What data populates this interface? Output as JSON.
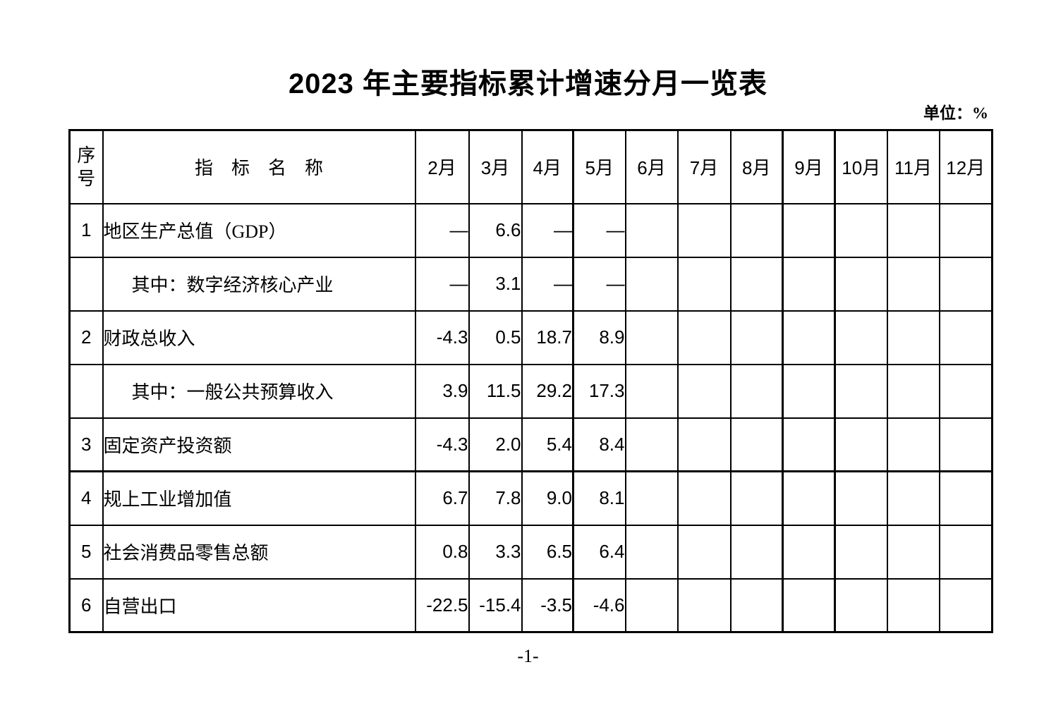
{
  "page": {
    "title": "2023 年主要指标累计增速分月一览表",
    "unit_label": "单位：%",
    "page_number": "-1-"
  },
  "table": {
    "header": {
      "serial": "序号",
      "indicator": "指　标　名　称",
      "months": [
        "2月",
        "3月",
        "4月",
        "5月",
        "6月",
        "7月",
        "8月",
        "9月",
        "10月",
        "11月",
        "12月"
      ]
    },
    "rows": [
      {
        "serial": "1",
        "indicator": "地区生产总值（GDP）",
        "indent": false,
        "values": [
          "—",
          "6.6",
          "—",
          "—",
          "",
          "",
          "",
          "",
          "",
          "",
          ""
        ]
      },
      {
        "serial": "",
        "indicator": "其中：数字经济核心产业",
        "indent": true,
        "values": [
          "—",
          "3.1",
          "—",
          "—",
          "",
          "",
          "",
          "",
          "",
          "",
          ""
        ]
      },
      {
        "serial": "2",
        "indicator": "财政总收入",
        "indent": false,
        "values": [
          "-4.3",
          "0.5",
          "18.7",
          "8.9",
          "",
          "",
          "",
          "",
          "",
          "",
          ""
        ]
      },
      {
        "serial": "",
        "indicator": "其中：一般公共预算收入",
        "indent": true,
        "values": [
          "3.9",
          "11.5",
          "29.2",
          "17.3",
          "",
          "",
          "",
          "",
          "",
          "",
          ""
        ]
      },
      {
        "serial": "3",
        "indicator": "固定资产投资额",
        "indent": false,
        "values": [
          "-4.3",
          "2.0",
          "5.4",
          "8.4",
          "",
          "",
          "",
          "",
          "",
          "",
          ""
        ]
      },
      {
        "serial": "4",
        "indicator": "规上工业增加值",
        "indent": false,
        "values": [
          "6.7",
          "7.8",
          "9.0",
          "8.1",
          "",
          "",
          "",
          "",
          "",
          "",
          ""
        ]
      },
      {
        "serial": "5",
        "indicator": "社会消费品零售总额",
        "indent": false,
        "values": [
          "0.8",
          "3.3",
          "6.5",
          "6.4",
          "",
          "",
          "",
          "",
          "",
          "",
          ""
        ]
      },
      {
        "serial": "6",
        "indicator": "自营出口",
        "indent": false,
        "values": [
          "-22.5",
          "-15.4",
          "-3.5",
          "-4.6",
          "",
          "",
          "",
          "",
          "",
          "",
          ""
        ]
      }
    ]
  }
}
